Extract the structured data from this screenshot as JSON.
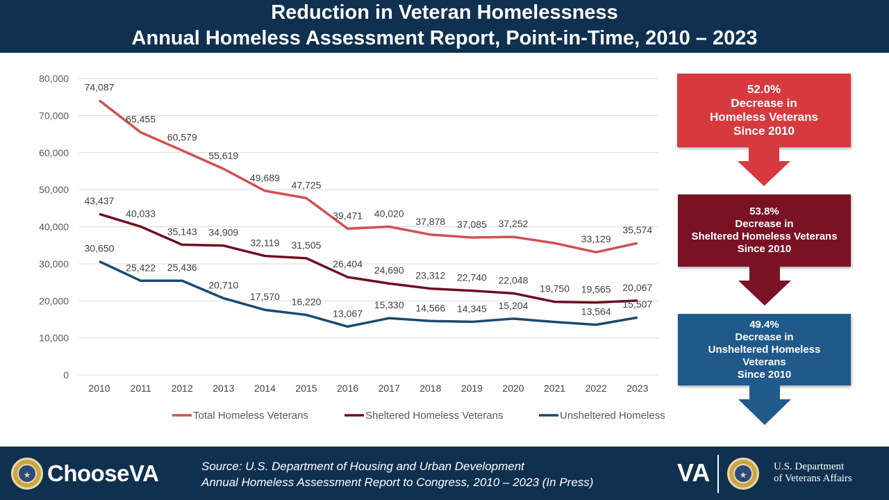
{
  "header": {
    "title_line1": "Reduction in Veteran Homelessness",
    "title_line2": "Annual Homeless Assessment Report, Point-in-Time, 2010 – 2023"
  },
  "chart_data": {
    "type": "line",
    "x": [
      "2010",
      "2011",
      "2012",
      "2013",
      "2014",
      "2015",
      "2016",
      "2017",
      "2018",
      "2019",
      "2020",
      "2021",
      "2022",
      "2023"
    ],
    "ylim": [
      0,
      80000
    ],
    "yticks": [
      0,
      10000,
      20000,
      30000,
      40000,
      50000,
      60000,
      70000,
      80000
    ],
    "ytick_labels": [
      "0",
      "10,000",
      "20,000",
      "30,000",
      "40,000",
      "50,000",
      "60,000",
      "70,000",
      "80,000"
    ],
    "grid": true,
    "legend_position": "bottom",
    "series": [
      {
        "name": "Total Homeless Veterans",
        "color": "#d05050",
        "values": [
          74087,
          65455,
          60579,
          55619,
          49689,
          47725,
          39471,
          40020,
          37878,
          37085,
          37252,
          35574,
          33129,
          35574
        ],
        "labels": [
          "74,087",
          "65,455",
          "60,579",
          "55,619",
          "49,689",
          "47,725",
          "39,471",
          "40,020",
          "37,878",
          "37,085",
          "37,252",
          "",
          "33,129",
          "35,574"
        ]
      },
      {
        "name": "Sheltered Homeless Veterans",
        "color": "#6d0e1f",
        "values": [
          43437,
          40033,
          35143,
          34909,
          32119,
          31505,
          26404,
          24690,
          23312,
          22740,
          22048,
          19750,
          19565,
          20067
        ],
        "labels": [
          "43,437",
          "40,033",
          "35,143",
          "34,909",
          "32,119",
          "31,505",
          "26,404",
          "24,690",
          "23,312",
          "22,740",
          "22,048",
          "19,750",
          "19,565",
          "20,067"
        ]
      },
      {
        "name": "Unsheltered Homeless Veterans",
        "color": "#1a4a6e",
        "values": [
          30650,
          25422,
          25436,
          20710,
          17570,
          16220,
          13067,
          15330,
          14566,
          14345,
          15204,
          14300,
          13564,
          15507
        ],
        "labels": [
          "30,650",
          "25,422",
          "25,436",
          "20,710",
          "17,570",
          "16,220",
          "13,067",
          "15,330",
          "14,566",
          "14,345",
          "15,204",
          "",
          "13,564",
          "15,507"
        ]
      }
    ]
  },
  "callouts": [
    {
      "percent": "52.0%",
      "lines": [
        "Decrease in",
        "Homeless Veterans",
        "Since 2010"
      ],
      "color": "#d63a3f"
    },
    {
      "percent": "53.8%",
      "lines": [
        "Decrease in",
        "Sheltered Homeless Veterans",
        "Since 2010"
      ],
      "color": "#7a1226"
    },
    {
      "percent": "49.4%",
      "lines": [
        "Decrease in",
        "Unsheltered Homeless",
        "Veterans",
        "Since 2010"
      ],
      "color": "#1f5a8a"
    }
  ],
  "footer": {
    "brand_choose": "Choose",
    "brand_va": "VA",
    "source_line1": "Source: U.S. Department of Housing and Urban Development",
    "source_line2": "Annual Homeless Assessment Report to Congress, 2010 – 2023 (In Press)",
    "va_logo": "VA",
    "dept_line1": "U.S. Department",
    "dept_line2": "of Veterans Affairs"
  }
}
